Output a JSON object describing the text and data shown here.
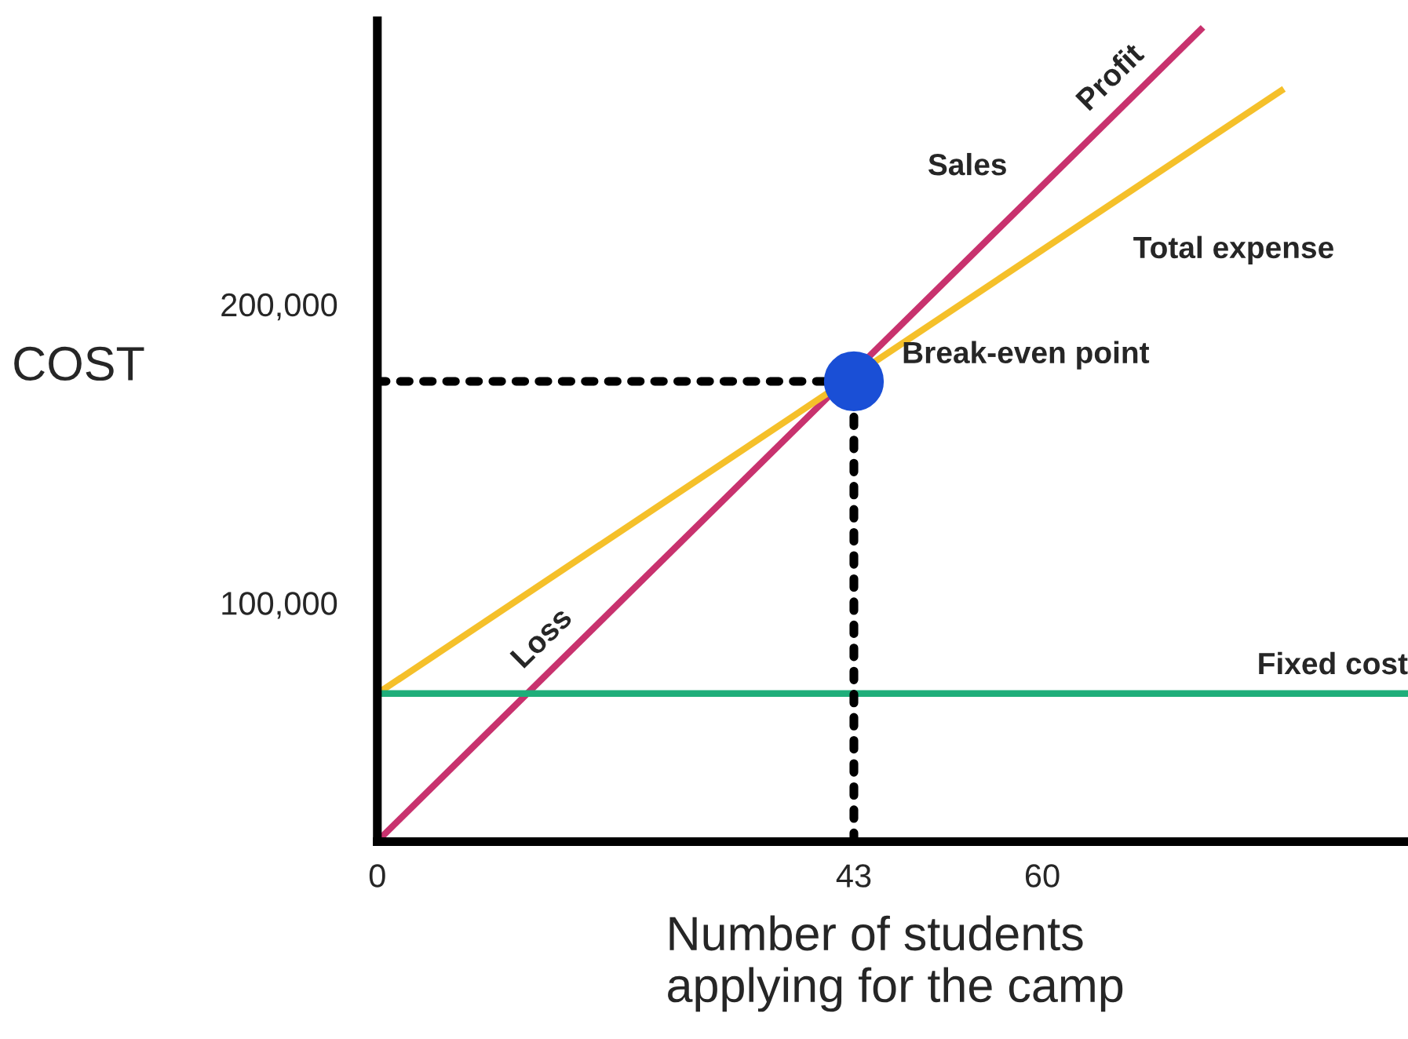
{
  "chart_data": {
    "type": "line",
    "xlabel": "Number of students\napplying for the camp",
    "ylabel": "COST",
    "xlim": [
      0,
      93
    ],
    "xticks": [
      0,
      43,
      60
    ],
    "ylim": [
      20000,
      295000
    ],
    "yticks": [
      {
        "value": 100000,
        "label": "100,000"
      },
      {
        "value": 200000,
        "label": "200,000"
      }
    ],
    "grid": false,
    "legend": false,
    "series": [
      {
        "name": "Sales",
        "color": "#c8326e",
        "x": [
          0,
          74.5
        ],
        "values": [
          20100,
          292800
        ]
      },
      {
        "name": "Total expense",
        "color": "#f5c02a",
        "x": [
          0,
          81.8
        ],
        "values": [
          69600,
          272200
        ]
      },
      {
        "name": "Fixed cost",
        "color": "#1fae7a",
        "x": [
          0,
          93
        ],
        "values": [
          69600,
          69600
        ]
      },
      {
        "type": "scatter",
        "color": "#1a4fd6",
        "marker": "circle",
        "x": [
          43
        ],
        "values": [
          174200
        ]
      }
    ],
    "ref_lines": [
      {
        "axis": "x",
        "value": 43,
        "color": "#000000",
        "line_style": "dotted"
      },
      {
        "axis": "y",
        "value": 174200,
        "color": "#000000",
        "line_style": "dotted"
      }
    ],
    "annotations": [
      {
        "text": "Profit",
        "x": 68,
        "y": 269000
      },
      {
        "text": "Loss",
        "x": 16.7,
        "y": 81200
      },
      {
        "text": "Break-even point",
        "x": 43,
        "y": 174200
      }
    ]
  }
}
